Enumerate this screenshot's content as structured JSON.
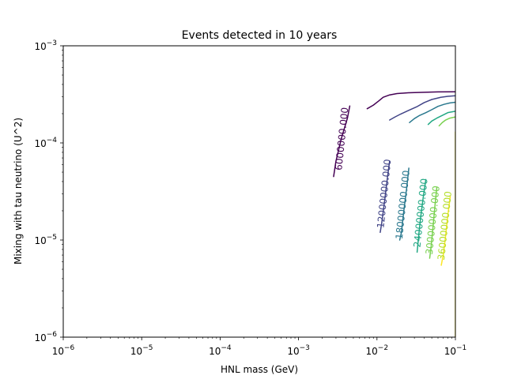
{
  "chart_data": {
    "type": "contour",
    "title": "Events detected in 10 years",
    "xlabel": "HNL mass (GeV)",
    "ylabel": "Mixing with tau neutrino (U^2)",
    "xscale": "log",
    "yscale": "log",
    "xlim": [
      1e-06,
      0.1
    ],
    "ylim": [
      1e-06,
      0.001
    ],
    "grid": false,
    "x_ticks": [
      {
        "value": 1e-06,
        "base": "10",
        "exp": "−6"
      },
      {
        "value": 1e-05,
        "base": "10",
        "exp": "−5"
      },
      {
        "value": 0.0001,
        "base": "10",
        "exp": "−4"
      },
      {
        "value": 0.001,
        "base": "10",
        "exp": "−3"
      },
      {
        "value": 0.01,
        "base": "10",
        "exp": "−2"
      },
      {
        "value": 0.1,
        "base": "10",
        "exp": "−1"
      }
    ],
    "y_ticks": [
      {
        "value": 1e-06,
        "base": "10",
        "exp": "−6"
      },
      {
        "value": 1e-05,
        "base": "10",
        "exp": "−5"
      },
      {
        "value": 0.0001,
        "base": "10",
        "exp": "−4"
      },
      {
        "value": 0.001,
        "base": "10",
        "exp": "−3"
      }
    ],
    "contours": [
      {
        "level": 6000000,
        "label": "6000000.000",
        "color": "#440154",
        "segments": [
          [
            [
              0.0075,
              0.000225
            ],
            [
              0.009,
              0.000245
            ],
            [
              0.0105,
              0.00027
            ],
            [
              0.012,
              0.000295
            ],
            [
              0.0145,
              0.000312
            ],
            [
              0.018,
              0.000322
            ],
            [
              0.025,
              0.000328
            ],
            [
              0.04,
              0.000332
            ],
            [
              0.06,
              0.000335
            ],
            [
              0.1,
              0.000336
            ]
          ],
          [
            [
              0.0045,
              0.00024
            ],
            [
              0.0042,
              0.00018
            ],
            [
              0.0035,
              0.00011
            ],
            [
              0.003,
              6.5e-05
            ],
            [
              0.0028,
              4.5e-05
            ]
          ]
        ],
        "label_pos": [
          0.0036,
          0.00011
        ]
      },
      {
        "level": 12000000,
        "label": "12000000.000",
        "color": "#414487",
        "segments": [
          [
            [
              0.0145,
              0.000172
            ],
            [
              0.017,
              0.000185
            ],
            [
              0.02,
              0.000198
            ],
            [
              0.025,
              0.000215
            ],
            [
              0.032,
              0.000235
            ],
            [
              0.04,
              0.00026
            ],
            [
              0.05,
              0.00028
            ],
            [
              0.065,
              0.000295
            ],
            [
              0.08,
              0.000302
            ],
            [
              0.1,
              0.000306
            ]
          ],
          [
            [
              0.0145,
              6.5e-05
            ],
            [
              0.0135,
              4.2e-05
            ],
            [
              0.0125,
              2.5e-05
            ],
            [
              0.0115,
              1.5e-05
            ],
            [
              0.011,
              1.2e-05
            ]
          ]
        ],
        "label_pos": [
          0.0125,
          3e-05
        ]
      },
      {
        "level": 18000000,
        "label": "18000000.000",
        "color": "#2a788e",
        "segments": [
          [
            [
              0.026,
              0.000162
            ],
            [
              0.03,
              0.000178
            ],
            [
              0.035,
              0.000192
            ],
            [
              0.042,
              0.000205
            ],
            [
              0.05,
              0.00022
            ],
            [
              0.06,
              0.000238
            ],
            [
              0.072,
              0.00025
            ],
            [
              0.085,
              0.000258
            ],
            [
              0.1,
              0.000262
            ]
          ],
          [
            [
              0.0255,
              5.5e-05
            ],
            [
              0.024,
              3.5e-05
            ],
            [
              0.022,
              2e-05
            ],
            [
              0.0205,
              1.2e-05
            ],
            [
              0.0195,
              1e-05
            ]
          ]
        ],
        "label_pos": [
          0.0215,
          2.3e-05
        ]
      },
      {
        "level": 24000000,
        "label": "24000000.000",
        "color": "#22a884",
        "segments": [
          [
            [
              0.045,
              0.000155
            ],
            [
              0.05,
              0.000168
            ],
            [
              0.058,
              0.00018
            ],
            [
              0.068,
              0.000192
            ],
            [
              0.08,
              0.000205
            ],
            [
              0.1,
              0.000212
            ]
          ],
          [
            [
              0.042,
              4.2e-05
            ],
            [
              0.039,
              2.8e-05
            ],
            [
              0.036,
              1.7e-05
            ],
            [
              0.034,
              1.1e-05
            ],
            [
              0.0325,
              7.5e-06
            ]
          ]
        ],
        "label_pos": [
          0.0365,
          1.9e-05
        ]
      },
      {
        "level": 30000000,
        "label": "30000000.000",
        "color": "#7ad151",
        "segments": [
          [
            [
              0.062,
              0.00015
            ],
            [
              0.068,
              0.000162
            ],
            [
              0.075,
              0.000172
            ],
            [
              0.085,
              0.00018
            ],
            [
              0.1,
              0.000185
            ]
          ],
          [
            [
              0.058,
              3.5e-05
            ],
            [
              0.055,
              2.3e-05
            ],
            [
              0.052,
              1.4e-05
            ],
            [
              0.049,
              8.5e-06
            ],
            [
              0.047,
              6.5e-06
            ]
          ]
        ],
        "label_pos": [
          0.052,
          1.6e-05
        ]
      },
      {
        "level": 36000000,
        "label": "36000000.000",
        "color": "#fde725",
        "segments": [
          [
            [
              0.1,
              1e-06
            ],
            [
              0.1,
              3e-06
            ],
            [
              0.1,
              1e-05
            ],
            [
              0.1,
              3e-05
            ],
            [
              0.1,
              0.00013
            ]
          ],
          [
            [
              0.086,
              2.8e-05
            ],
            [
              0.08,
              1.8e-05
            ],
            [
              0.075,
              1.1e-05
            ],
            [
              0.07,
              7e-06
            ],
            [
              0.066,
              5.5e-06
            ]
          ]
        ],
        "label_pos": [
          0.074,
          1.4e-05
        ],
        "label_color": "#b4de2c"
      }
    ]
  }
}
